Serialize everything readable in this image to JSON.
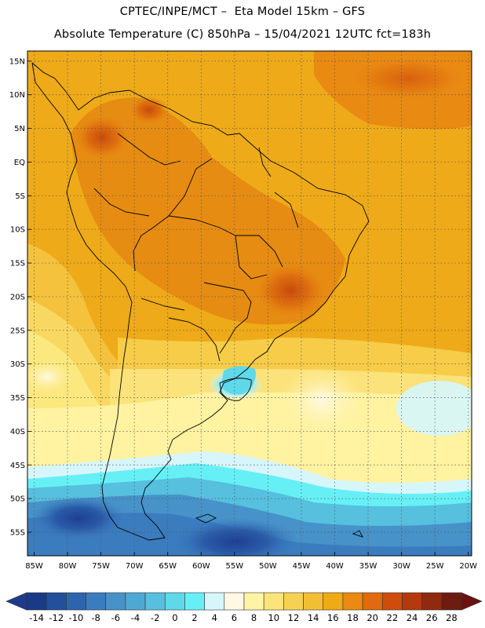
{
  "header": {
    "line1": "CPTEC/INPE/MCT –  Eta Model 15km – GFS",
    "line2": "Absolute Temperature (C) 850hPa – 15/04/2021 12UTC fct=183h"
  },
  "map": {
    "lat_labels": [
      "15N",
      "10N",
      "5N",
      "EQ",
      "5S",
      "10S",
      "15S",
      "20S",
      "25S",
      "30S",
      "35S",
      "40S",
      "45S",
      "50S",
      "55S"
    ],
    "lat_values": [
      15,
      10,
      5,
      0,
      -5,
      -10,
      -15,
      -20,
      -25,
      -30,
      -35,
      -40,
      -45,
      -50,
      -55
    ],
    "lon_labels": [
      "85W",
      "80W",
      "75W",
      "70W",
      "65W",
      "60W",
      "55W",
      "50W",
      "45W",
      "40W",
      "35W",
      "30W",
      "25W",
      "20W"
    ],
    "lon_values": [
      -85,
      -80,
      -75,
      -70,
      -65,
      -60,
      -55,
      -50,
      -45,
      -40,
      -35,
      -30,
      -25,
      -20
    ],
    "lon_range": [
      -86,
      -19.5
    ],
    "lat_range": [
      -58.5,
      16.5
    ],
    "gridlines": "dotted"
  },
  "colorbar": {
    "labels": [
      "-14",
      "-12",
      "-10",
      "-8",
      "-6",
      "-4",
      "-2",
      "0",
      "2",
      "4",
      "6",
      "8",
      "10",
      "12",
      "14",
      "16",
      "18",
      "20",
      "22",
      "24",
      "26",
      "28"
    ],
    "colors": [
      "#1a3a88",
      "#23509c",
      "#2d64ad",
      "#3a7cbe",
      "#4692c9",
      "#4ea8d4",
      "#56c0de",
      "#5fd8ea",
      "#66f0f6",
      "#d6f6fb",
      "#fff8e4",
      "#fff4a6",
      "#fbe47a",
      "#f7d252",
      "#f2bf34",
      "#efab14",
      "#ea8a10",
      "#e06a0e",
      "#cf4d0c",
      "#b23a0c",
      "#8f2a0e",
      "#6e1c10"
    ],
    "tip_low_color": "#1e3a8a",
    "tip_high_color": "#6b1210"
  }
}
